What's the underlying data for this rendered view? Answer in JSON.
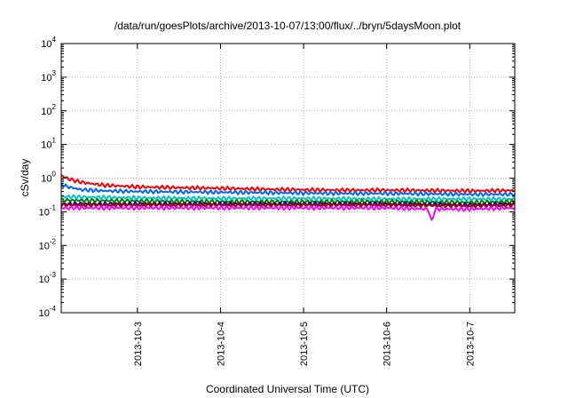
{
  "chart_data": {
    "type": "line",
    "title": "/data/run/goesPlots/archive/2013-10-07/13:00/flux/../bryn/5daysMoon.plot",
    "xlabel": "Coordinated Universal Time (UTC)",
    "ylabel": "cSv/day",
    "y_scale": "log",
    "ylim": [
      0.0001,
      10000
    ],
    "xlim": [
      "2013-10-02 02:00",
      "2013-10-07 13:00"
    ],
    "y_ticks": [
      {
        "base": "10",
        "exp": "-4",
        "value": 0.0001
      },
      {
        "base": "10",
        "exp": "-3",
        "value": 0.001
      },
      {
        "base": "10",
        "exp": "-2",
        "value": 0.01
      },
      {
        "base": "10",
        "exp": "-1",
        "value": 0.1
      },
      {
        "base": "10",
        "exp": "0",
        "value": 1
      },
      {
        "base": "10",
        "exp": "1",
        "value": 10
      },
      {
        "base": "10",
        "exp": "2",
        "value": 100
      },
      {
        "base": "10",
        "exp": "3",
        "value": 1000
      },
      {
        "base": "10",
        "exp": "4",
        "value": 10000
      }
    ],
    "x_ticks": [
      "2013-10-3",
      "2013-10-4",
      "2013-10-5",
      "2013-10-6",
      "2013-10-7"
    ],
    "x_tick_dates": [
      "2013-10-03 00:00",
      "2013-10-04 00:00",
      "2013-10-05 00:00",
      "2013-10-06 00:00",
      "2013-10-07 00:00"
    ],
    "grid": true,
    "series": [
      {
        "color": "#ff0000",
        "x": [
          "2013-10-02 02:00",
          "2013-10-02 04:00",
          "2013-10-02 08:00",
          "2013-10-02 14:00",
          "2013-10-03 00:00",
          "2013-10-03 12:00",
          "2013-10-04 00:00",
          "2013-10-04 12:00",
          "2013-10-05 00:00",
          "2013-10-05 12:00",
          "2013-10-06 00:00",
          "2013-10-06 12:00",
          "2013-10-07 00:00",
          "2013-10-07 13:00"
        ],
        "values": [
          1.2,
          0.95,
          0.75,
          0.62,
          0.55,
          0.52,
          0.5,
          0.47,
          0.45,
          0.44,
          0.44,
          0.43,
          0.42,
          0.43
        ]
      },
      {
        "color": "#0066ff",
        "x": [
          "2013-10-02 02:00",
          "2013-10-02 04:00",
          "2013-10-02 08:00",
          "2013-10-02 14:00",
          "2013-10-03 00:00",
          "2013-10-03 12:00",
          "2013-10-04 00:00",
          "2013-10-04 12:00",
          "2013-10-05 00:00",
          "2013-10-05 12:00",
          "2013-10-06 00:00",
          "2013-10-06 12:00",
          "2013-10-07 00:00",
          "2013-10-07 13:00"
        ],
        "values": [
          0.65,
          0.55,
          0.45,
          0.42,
          0.4,
          0.39,
          0.38,
          0.37,
          0.36,
          0.35,
          0.35,
          0.34,
          0.33,
          0.33
        ]
      },
      {
        "color": "#00c8c8",
        "x": [
          "2013-10-02 02:00",
          "2013-10-03 00:00",
          "2013-10-04 00:00",
          "2013-10-05 00:00",
          "2013-10-06 00:00",
          "2013-10-07 00:00",
          "2013-10-07 13:00"
        ],
        "values": [
          0.28,
          0.26,
          0.25,
          0.25,
          0.24,
          0.24,
          0.24
        ]
      },
      {
        "color": "#008000",
        "x": [
          "2013-10-02 02:00",
          "2013-10-03 00:00",
          "2013-10-04 00:00",
          "2013-10-05 00:00",
          "2013-10-06 00:00",
          "2013-10-07 00:00",
          "2013-10-07 13:00"
        ],
        "values": [
          0.22,
          0.21,
          0.2,
          0.2,
          0.2,
          0.19,
          0.2
        ]
      },
      {
        "color": "#0000a0",
        "x": [
          "2013-10-02 02:00",
          "2013-10-03 00:00",
          "2013-10-04 00:00",
          "2013-10-05 00:00",
          "2013-10-06 00:00",
          "2013-10-07 00:00",
          "2013-10-07 13:00"
        ],
        "values": [
          0.17,
          0.17,
          0.17,
          0.17,
          0.17,
          0.16,
          0.17
        ]
      },
      {
        "color": "#a00000",
        "x": [
          "2013-10-02 02:00",
          "2013-10-03 00:00",
          "2013-10-04 00:00",
          "2013-10-05 00:00",
          "2013-10-06 00:00",
          "2013-10-07 00:00",
          "2013-10-07 13:00"
        ],
        "values": [
          0.16,
          0.16,
          0.16,
          0.16,
          0.16,
          0.15,
          0.16
        ]
      },
      {
        "color": "#ff00ff",
        "x": [
          "2013-10-02 02:00",
          "2013-10-03 00:00",
          "2013-10-04 00:00",
          "2013-10-05 00:00",
          "2013-10-06 00:00",
          "2013-10-06 12:00",
          "2013-10-06 13:00",
          "2013-10-06 14:00",
          "2013-10-07 00:00",
          "2013-10-07 13:00"
        ],
        "values": [
          0.13,
          0.13,
          0.13,
          0.13,
          0.13,
          0.12,
          0.05,
          0.12,
          0.12,
          0.13
        ]
      }
    ]
  }
}
